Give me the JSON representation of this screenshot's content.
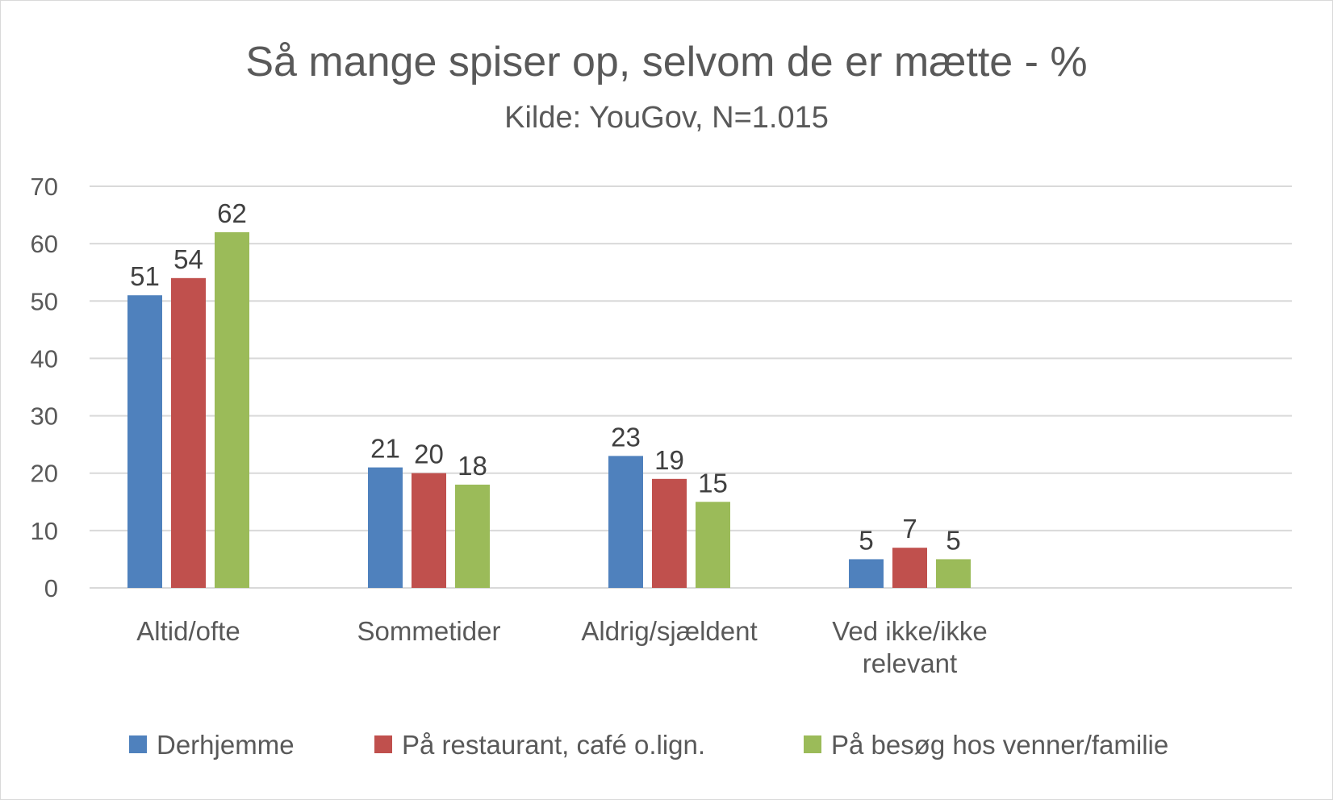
{
  "chart_data": {
    "type": "bar",
    "title": "Så mange spiser op, selvom de er mætte - %",
    "subtitle": "Kilde: YouGov, N=1.015",
    "categories": [
      [
        "Altid/ofte"
      ],
      [
        "Sommetider"
      ],
      [
        "Aldrig/sjældent"
      ],
      [
        "Ved ikke/ikke",
        "relevant"
      ]
    ],
    "series": [
      {
        "name": "Derhjemme",
        "color": "#4f81bd",
        "values": [
          51,
          21,
          23,
          5
        ]
      },
      {
        "name": "På restaurant, café o.lign.",
        "color": "#c0504d",
        "values": [
          54,
          20,
          19,
          7
        ]
      },
      {
        "name": "På besøg hos venner/familie",
        "color": "#9bbb59",
        "values": [
          62,
          18,
          15,
          5
        ]
      }
    ],
    "ylim": [
      0,
      70
    ],
    "yticks": [
      0,
      10,
      20,
      30,
      40,
      50,
      60,
      70
    ],
    "xlabel": "",
    "ylabel": "",
    "grid": true,
    "legend_position": "bottom"
  }
}
